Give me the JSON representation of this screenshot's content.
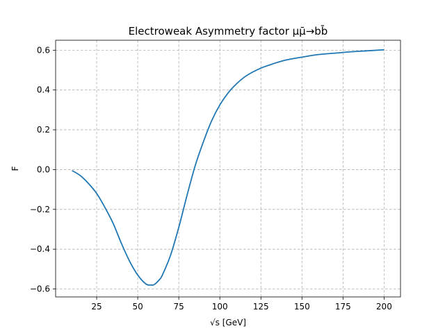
{
  "chart_data": {
    "type": "line",
    "title": "Electroweak Asymmetry factor μμ̄→bb̄",
    "xlabel": "√s [GeV]",
    "ylabel": "F",
    "xlim": [
      0,
      210
    ],
    "ylim": [
      -0.64,
      0.65
    ],
    "xticks": [
      25,
      50,
      75,
      100,
      125,
      150,
      175,
      200
    ],
    "yticks": [
      -0.6,
      -0.4,
      -0.2,
      0.0,
      0.2,
      0.4,
      0.6
    ],
    "ytick_labels": [
      "−0.6",
      "−0.4",
      "−0.2",
      "0.0",
      "0.2",
      "0.4",
      "0.6"
    ],
    "grid": true,
    "series": [
      {
        "color": "#1f77b4",
        "x": [
          10,
          15,
          20,
          25,
          30,
          35,
          40,
          45,
          50,
          55,
          58,
          60,
          63,
          65,
          70,
          75,
          80,
          85,
          90,
          95,
          100,
          105,
          110,
          115,
          120,
          125,
          130,
          140,
          150,
          160,
          170,
          180,
          190,
          200
        ],
        "y": [
          -0.005,
          -0.03,
          -0.07,
          -0.12,
          -0.19,
          -0.27,
          -0.37,
          -0.46,
          -0.53,
          -0.575,
          -0.58,
          -0.578,
          -0.555,
          -0.53,
          -0.43,
          -0.29,
          -0.13,
          0.02,
          0.14,
          0.245,
          0.325,
          0.385,
          0.43,
          0.465,
          0.49,
          0.51,
          0.525,
          0.55,
          0.565,
          0.578,
          0.585,
          0.592,
          0.597,
          0.602
        ]
      }
    ]
  }
}
